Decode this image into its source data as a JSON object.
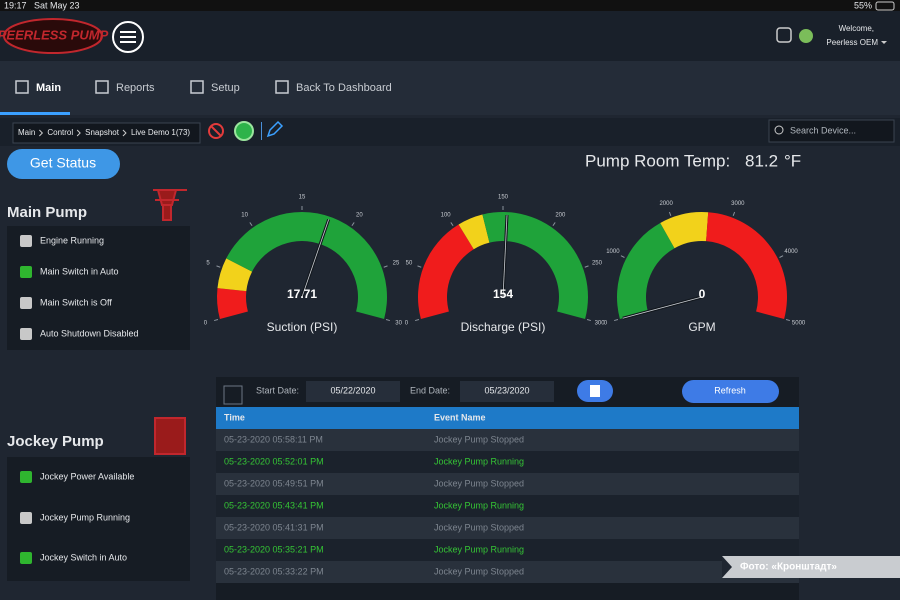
{
  "status_bar": {
    "time": "19:17",
    "date": "Sat May 23",
    "battery": "55%"
  },
  "header": {
    "logo": "PEERLESS PUMP",
    "welcome": "Welcome,",
    "user": "Peerless OEM"
  },
  "nav": [
    "Main",
    "Reports",
    "Setup",
    "Back To Dashboard"
  ],
  "breadcrumb": [
    "Main",
    "Control",
    "Snapshot",
    "Live Demo 1(73)"
  ],
  "search_placeholder": "Search Device...",
  "get_status": "Get Status",
  "room_temp": {
    "label": "Pump Room Temp:",
    "value": 81.2,
    "unit": "°F"
  },
  "main_pump": {
    "title": "Main Pump",
    "items": [
      {
        "label": "Engine Running",
        "color": "#c8c8c8"
      },
      {
        "label": "Main Switch in Auto",
        "color": "#2fb52f"
      },
      {
        "label": "Main Switch is Off",
        "color": "#c8c8c8"
      },
      {
        "label": "Auto Shutdown Disabled",
        "color": "#c8c8c8"
      }
    ]
  },
  "jockey_pump": {
    "title": "Jockey Pump",
    "items": [
      {
        "label": "Jockey Power Available",
        "color": "#2fb52f"
      },
      {
        "label": "Jockey Pump Running",
        "color": "#c8c8c8"
      },
      {
        "label": "Jockey Switch in Auto",
        "color": "#2fb52f"
      }
    ]
  },
  "gauges": [
    {
      "label": "Suction (PSI)",
      "value": 17.71,
      "min": 0,
      "max": 30,
      "ticks": [
        0,
        5,
        10,
        15,
        20,
        25,
        30
      ],
      "bands": [
        {
          "from": 0,
          "to": 3,
          "color": "#f01c1c"
        },
        {
          "from": 3,
          "to": 6,
          "color": "#f2d21b"
        },
        {
          "from": 6,
          "to": 30,
          "color": "#1fa33a"
        }
      ]
    },
    {
      "label": "Discharge (PSI)",
      "value": 154,
      "min": 0,
      "max": 300,
      "ticks": [
        0,
        50,
        100,
        150,
        200,
        250,
        300
      ],
      "bands": [
        {
          "from": 0,
          "to": 105,
          "color": "#f01c1c"
        },
        {
          "from": 105,
          "to": 130,
          "color": "#f2d21b"
        },
        {
          "from": 130,
          "to": 300,
          "color": "#1fa33a"
        }
      ]
    },
    {
      "label": "GPM",
      "value": 0,
      "min": 0,
      "max": 5000,
      "ticks": [
        0,
        1000,
        2000,
        3000,
        4000,
        5000
      ],
      "bands": [
        {
          "from": 0,
          "to": 1800,
          "color": "#1fa33a"
        },
        {
          "from": 1800,
          "to": 2600,
          "color": "#f2d21b"
        },
        {
          "from": 2600,
          "to": 5000,
          "color": "#f01c1c"
        }
      ]
    }
  ],
  "table": {
    "start_label": "Start Date:",
    "start_date": "05/22/2020",
    "end_label": "End Date:",
    "end_date": "05/23/2020",
    "refresh": "Refresh",
    "columns": [
      "Time",
      "Event Name"
    ],
    "rows": [
      {
        "time": "05-23-2020 05:58:11 PM",
        "event": "Jockey Pump Stopped",
        "color": "#7d858f"
      },
      {
        "time": "05-23-2020 05:52:01 PM",
        "event": "Jockey Pump Running",
        "color": "#35c535"
      },
      {
        "time": "05-23-2020 05:49:51 PM",
        "event": "Jockey Pump Stopped",
        "color": "#7d858f"
      },
      {
        "time": "05-23-2020 05:43:41 PM",
        "event": "Jockey Pump Running",
        "color": "#35c535"
      },
      {
        "time": "05-23-2020 05:41:31 PM",
        "event": "Jockey Pump Stopped",
        "color": "#7d858f"
      },
      {
        "time": "05-23-2020 05:35:21 PM",
        "event": "Jockey Pump Running",
        "color": "#35c535"
      },
      {
        "time": "05-23-2020 05:33:22 PM",
        "event": "Jockey Pump Stopped",
        "color": "#7d858f"
      }
    ]
  },
  "watermark": "Фото: «Кронштадт»"
}
